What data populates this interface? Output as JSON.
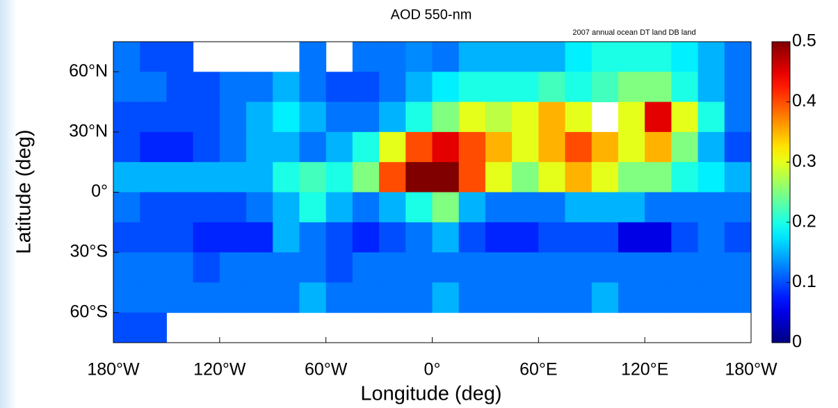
{
  "chart_data": {
    "type": "map",
    "title": "AOD 550-nm",
    "subtitle": "2007 annual   ocean DT land DB land",
    "xlabel": "Longitude (deg)",
    "ylabel": "Latitude (deg)",
    "xlim": [
      -180,
      180
    ],
    "ylim": [
      -75,
      75
    ],
    "xticks": [
      {
        "value": -180,
        "label": "180°W"
      },
      {
        "value": -120,
        "label": "120°W"
      },
      {
        "value": -60,
        "label": "60°W"
      },
      {
        "value": 0,
        "label": "0°"
      },
      {
        "value": 60,
        "label": "60°E"
      },
      {
        "value": 120,
        "label": "120°E"
      },
      {
        "value": 180,
        "label": "180°W"
      }
    ],
    "yticks": [
      {
        "value": 60,
        "label": "60°N"
      },
      {
        "value": 30,
        "label": "30°N"
      },
      {
        "value": 0,
        "label": "0°"
      },
      {
        "value": -30,
        "label": "30°S"
      },
      {
        "value": -60,
        "label": "60°S"
      }
    ],
    "colormap": "jet",
    "clim": [
      0,
      0.5
    ],
    "cticks": [
      0,
      0.1,
      0.2,
      0.3,
      0.4,
      0.5
    ],
    "lat": [
      67.5,
      52.5,
      37.5,
      22.5,
      7.5,
      -7.5,
      -22.5,
      -37.5,
      -52.5,
      -67.5
    ],
    "lon": [
      -172.5,
      -157.5,
      -142.5,
      -127.5,
      -112.5,
      -97.5,
      -82.5,
      -67.5,
      -52.5,
      -37.5,
      -22.5,
      -7.5,
      7.5,
      22.5,
      37.5,
      52.5,
      67.5,
      82.5,
      97.5,
      112.5,
      127.5,
      142.5,
      157.5,
      172.5
    ],
    "values": [
      [
        0.12,
        0.1,
        0.1,
        null,
        null,
        null,
        null,
        0.12,
        null,
        0.12,
        0.12,
        0.13,
        0.12,
        0.15,
        0.15,
        0.15,
        0.15,
        0.18,
        0.2,
        0.2,
        0.2,
        0.18,
        0.15,
        0.12
      ],
      [
        0.12,
        0.12,
        0.1,
        0.1,
        0.12,
        0.12,
        0.15,
        0.12,
        0.1,
        0.1,
        0.12,
        0.15,
        0.18,
        0.2,
        0.2,
        0.2,
        0.22,
        0.2,
        0.22,
        0.25,
        0.25,
        0.2,
        0.15,
        0.12
      ],
      [
        0.1,
        0.1,
        0.1,
        0.1,
        0.12,
        0.15,
        0.18,
        0.15,
        0.12,
        0.12,
        0.15,
        0.2,
        0.25,
        0.3,
        0.28,
        0.3,
        0.35,
        0.3,
        null,
        0.3,
        0.45,
        0.3,
        0.2,
        0.12
      ],
      [
        0.1,
        0.08,
        0.08,
        0.1,
        0.12,
        0.15,
        0.15,
        0.12,
        0.15,
        0.2,
        0.3,
        0.4,
        0.45,
        0.4,
        0.35,
        0.3,
        0.35,
        0.4,
        0.35,
        0.3,
        0.35,
        0.25,
        0.15,
        0.1
      ],
      [
        0.15,
        0.15,
        0.15,
        0.15,
        0.15,
        0.15,
        0.2,
        0.22,
        0.2,
        0.25,
        0.4,
        0.5,
        0.5,
        0.4,
        0.3,
        0.25,
        0.3,
        0.35,
        0.3,
        0.25,
        0.25,
        0.2,
        0.18,
        0.15
      ],
      [
        0.12,
        0.1,
        0.1,
        0.1,
        0.1,
        0.12,
        0.15,
        0.2,
        0.15,
        0.12,
        0.15,
        0.2,
        0.25,
        0.15,
        0.12,
        0.12,
        0.12,
        0.15,
        0.15,
        0.15,
        0.12,
        0.12,
        0.12,
        0.12
      ],
      [
        0.1,
        0.1,
        0.1,
        0.08,
        0.08,
        0.08,
        0.15,
        0.12,
        0.1,
        0.08,
        0.1,
        0.12,
        0.15,
        0.1,
        0.08,
        0.08,
        0.1,
        0.1,
        0.1,
        0.05,
        0.05,
        0.1,
        0.12,
        0.1
      ],
      [
        0.12,
        0.12,
        0.12,
        0.1,
        0.12,
        0.12,
        0.12,
        0.12,
        0.1,
        0.12,
        0.12,
        0.12,
        0.12,
        0.12,
        0.12,
        0.12,
        0.12,
        0.12,
        0.12,
        0.12,
        0.12,
        0.12,
        0.12,
        0.12
      ],
      [
        0.12,
        0.12,
        0.12,
        0.12,
        0.12,
        0.12,
        0.12,
        0.15,
        0.12,
        0.12,
        0.12,
        0.12,
        0.15,
        0.12,
        0.12,
        0.12,
        0.12,
        0.12,
        0.15,
        0.12,
        0.12,
        0.12,
        0.12,
        0.12
      ],
      [
        0.1,
        0.1,
        null,
        null,
        null,
        null,
        null,
        null,
        null,
        null,
        null,
        null,
        null,
        null,
        null,
        null,
        null,
        null,
        null,
        null,
        null,
        null,
        null,
        null
      ]
    ]
  }
}
